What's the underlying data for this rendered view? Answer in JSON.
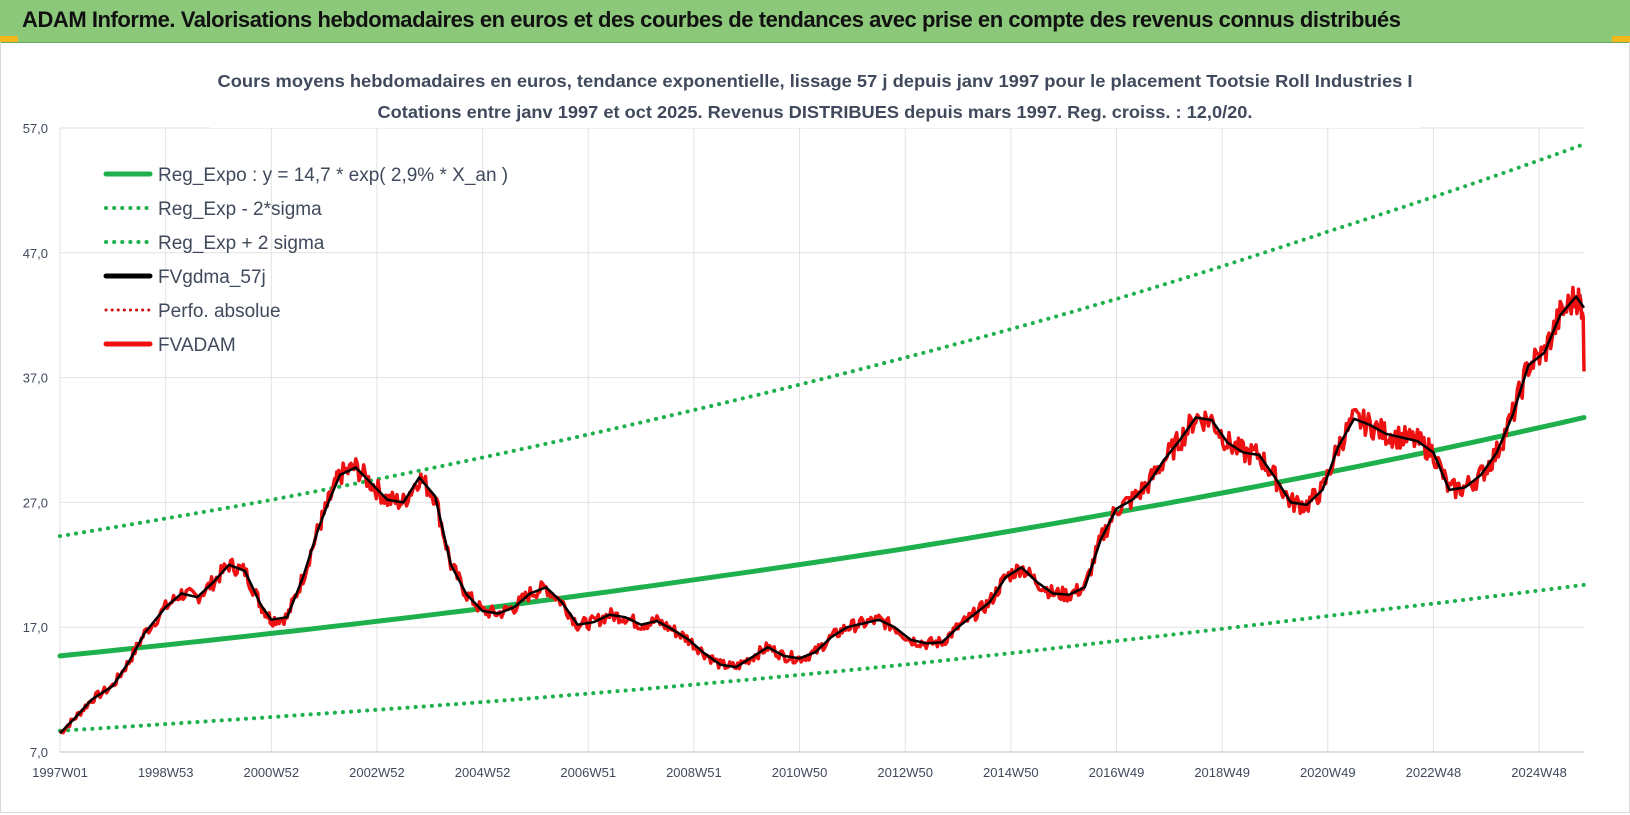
{
  "header": {
    "title": "ADAM Informe. Valorisations hebdomadaires en euros et des courbes de tendances avec prise en compte des revenus connus distribués"
  },
  "colors": {
    "banner": "#8bc87a",
    "reg_expo": "#1db04d",
    "sigma": "#1db04d",
    "fvgdma": "#000000",
    "perfo": "#d01010",
    "fvadam": "#ee1111",
    "grid": "#e2e2e2",
    "text": "#404a5c"
  },
  "chart_data": {
    "type": "line",
    "title": "Cours moyens hebdomadaires en euros, tendance exponentielle, lissage 57 j depuis janv 1997 pour le placement Tootsie Roll Industries I",
    "subtitle": "Cotations entre janv 1997 et oct 2025. Revenus DISTRIBUES depuis mars 1997. Reg. croiss. : 12,0/20.",
    "xlabel": "",
    "ylabel": "",
    "xlim": [
      1997.0,
      2025.85
    ],
    "ylim": [
      7,
      57
    ],
    "y_ticks": [
      "7,0",
      "17,0",
      "27,0",
      "37,0",
      "47,0",
      "57,0"
    ],
    "y_tick_values": [
      7,
      17,
      27,
      37,
      47,
      57
    ],
    "x_ticks": [
      "1997W01",
      "1998W53",
      "2000W52",
      "2002W52",
      "2004W52",
      "2006W51",
      "2008W51",
      "2010W50",
      "2012W50",
      "2014W50",
      "2016W49",
      "2018W49",
      "2020W49",
      "2022W48",
      "2024W48"
    ],
    "x_tick_values": [
      1997.0,
      1999.0,
      2001.0,
      2003.0,
      2005.0,
      2007.0,
      2009.0,
      2011.0,
      2013.0,
      2015.0,
      2017.0,
      2019.0,
      2021.0,
      2023.0,
      2025.0
    ],
    "grid": true,
    "legend_position": "top-left",
    "series": [
      {
        "name": "Reg_Expo : y = 14,7 * exp( 2,9% *  X_an )",
        "style": "solid",
        "width": 5,
        "x": [
          1997.0,
          2001.0,
          2005.0,
          2009.0,
          2013.0,
          2017.0,
          2021.0,
          2025.85
        ],
        "y": [
          14.7,
          16.5,
          18.5,
          20.8,
          23.3,
          26.2,
          29.4,
          33.8
        ]
      },
      {
        "name": "Reg_Exp - 2*sigma",
        "style": "dotted",
        "width": 4,
        "x": [
          1997.0,
          2001.0,
          2005.0,
          2009.0,
          2013.0,
          2017.0,
          2021.0,
          2025.85
        ],
        "y": [
          8.7,
          9.8,
          11.0,
          12.4,
          14.0,
          15.9,
          17.9,
          20.4
        ]
      },
      {
        "name": "Reg_Exp + 2 sigma",
        "style": "dotted",
        "width": 4,
        "x": [
          1997.0,
          2001.0,
          2005.0,
          2009.0,
          2013.0,
          2017.0,
          2021.0,
          2025.85
        ],
        "y": [
          24.3,
          27.2,
          30.6,
          34.4,
          38.6,
          43.3,
          48.7,
          55.7
        ]
      },
      {
        "name": "FVgdma_57j",
        "style": "solid",
        "width": 2.5,
        "x": [
          1997.0,
          1997.3,
          1997.6,
          1998.0,
          1998.3,
          1998.6,
          1999.0,
          1999.3,
          1999.6,
          1999.9,
          2000.2,
          2000.5,
          2000.8,
          2001.0,
          2001.3,
          2001.6,
          2001.9,
          2002.1,
          2002.3,
          2002.6,
          2002.9,
          2003.2,
          2003.5,
          2003.8,
          2004.1,
          2004.4,
          2004.7,
          2005.0,
          2005.3,
          2005.6,
          2005.9,
          2006.2,
          2006.5,
          2006.8,
          2007.1,
          2007.4,
          2007.7,
          2008.0,
          2008.3,
          2008.6,
          2008.9,
          2009.2,
          2009.5,
          2009.8,
          2010.1,
          2010.4,
          2010.7,
          2011.0,
          2011.3,
          2011.6,
          2011.9,
          2012.2,
          2012.5,
          2012.8,
          2013.1,
          2013.4,
          2013.7,
          2014.0,
          2014.3,
          2014.6,
          2014.9,
          2015.2,
          2015.5,
          2015.8,
          2016.1,
          2016.4,
          2016.7,
          2017.0,
          2017.3,
          2017.6,
          2017.9,
          2018.2,
          2018.5,
          2018.8,
          2019.1,
          2019.4,
          2019.7,
          2020.0,
          2020.3,
          2020.6,
          2020.9,
          2021.2,
          2021.5,
          2021.8,
          2022.1,
          2022.4,
          2022.7,
          2023.0,
          2023.3,
          2023.6,
          2023.9,
          2024.2,
          2024.5,
          2024.8,
          2025.1,
          2025.4,
          2025.7,
          2025.85
        ],
        "y": [
          8.5,
          9.8,
          11.2,
          12.3,
          14.2,
          16.5,
          18.6,
          19.7,
          19.4,
          20.6,
          22.0,
          21.5,
          18.8,
          17.6,
          17.8,
          21.0,
          25.0,
          27.2,
          29.2,
          29.8,
          28.5,
          27.2,
          27.0,
          29.0,
          27.5,
          22.0,
          19.6,
          18.3,
          18.1,
          18.6,
          19.7,
          20.2,
          19.0,
          17.2,
          17.4,
          18.0,
          17.8,
          17.2,
          17.5,
          16.8,
          16.0,
          14.9,
          14.0,
          13.8,
          14.6,
          15.4,
          14.7,
          14.5,
          15.0,
          16.2,
          17.0,
          17.3,
          17.6,
          17.0,
          16.0,
          15.7,
          15.8,
          17.0,
          18.0,
          19.0,
          21.0,
          21.8,
          20.6,
          19.7,
          19.6,
          20.2,
          24.0,
          26.5,
          27.2,
          28.5,
          30.4,
          32.0,
          33.8,
          33.6,
          31.8,
          31.0,
          30.8,
          29.0,
          27.0,
          26.8,
          28.0,
          31.5,
          33.7,
          33.2,
          32.5,
          32.2,
          31.9,
          31.0,
          28.0,
          28.2,
          29.2,
          31.0,
          34.0,
          38.0,
          39.0,
          42.0,
          43.5,
          42.6
        ]
      }
    ]
  },
  "legend": [
    {
      "label": "Reg_Expo : y = 14,7 * exp( 2,9% *  X_an )",
      "style": "solid",
      "color": "#1db04d"
    },
    {
      "label": "Reg_Exp - 2*sigma",
      "style": "dotted",
      "color": "#1db04d"
    },
    {
      "label": "Reg_Exp + 2 sigma",
      "style": "dotted",
      "color": "#1db04d"
    },
    {
      "label": "FVgdma_57j",
      "style": "solid",
      "color": "#000000"
    },
    {
      "label": "Perfo. absolue",
      "style": "dotted",
      "color": "#d01010"
    },
    {
      "label": "FVADAM",
      "style": "solid",
      "color": "#ee1111"
    }
  ]
}
